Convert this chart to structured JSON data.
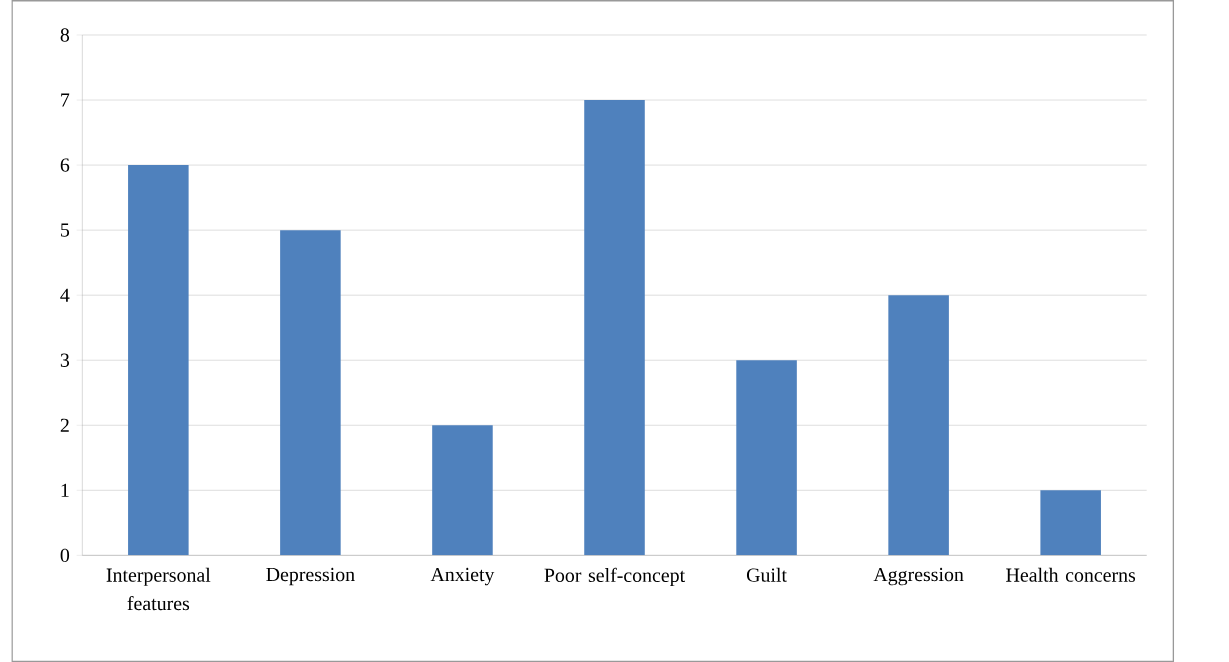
{
  "chart_data": {
    "type": "bar",
    "categories": [
      "Interpersonal features",
      "Depression",
      "Anxiety",
      "Poor self-concept",
      "Guilt",
      "Aggression",
      "Health concerns"
    ],
    "values": [
      6,
      5,
      2,
      7,
      3,
      4,
      1
    ],
    "color": "#4f81bd",
    "ylim": [
      0,
      8
    ],
    "yticks": [
      0,
      1,
      2,
      3,
      4,
      5,
      6,
      7,
      8
    ],
    "grid": "y"
  }
}
